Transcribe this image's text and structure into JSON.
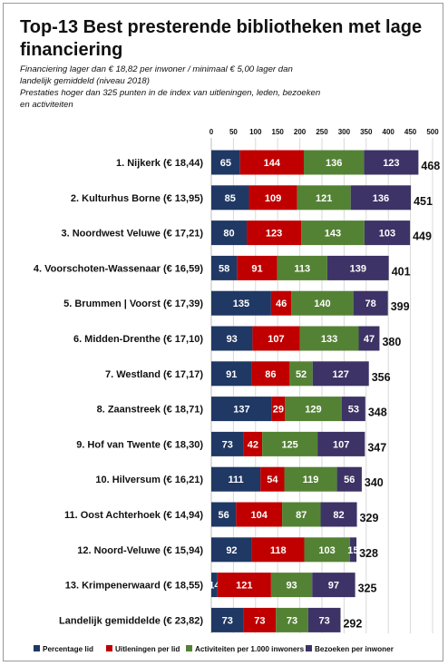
{
  "chart_data": {
    "type": "bar",
    "orientation": "horizontal",
    "stacked": true,
    "title": "Top-13 Best presterende bibliotheken met lage financiering",
    "subtitle_lines": [
      "Financiering lager dan € 18,82 per inwoner / minimaal € 5,00 lager dan",
      "landelijk gemiddeld (niveau 2018)",
      "Prestaties hoger dan 325 punten in de index van uitleningen, leden, bezoeken",
      "en activiteiten"
    ],
    "xlim": [
      0,
      500
    ],
    "x_ticks": [
      0,
      50,
      100,
      150,
      200,
      250,
      300,
      350,
      400,
      450,
      500
    ],
    "x_axis_position": "top",
    "grid": true,
    "legend_position": "bottom",
    "categories": [
      "1. Nijkerk (€ 18,44)",
      "2. Kulturhus Borne (€ 13,95)",
      "3. Noordwest Veluwe (€ 17,21)",
      "4. Voorschoten-Wassenaar (€ 16,59)",
      "5. Brummen | Voorst (€ 17,39)",
      "6. Midden-Drenthe (€ 17,10)",
      "7. Westland (€ 17,17)",
      "8. Zaanstreek (€ 18,71)",
      "9. Hof van Twente (€ 18,30)",
      "10. Hilversum (€ 16,21)",
      "11. Oost Achterhoek (€ 14,94)",
      "12. Noord-Veluwe (€ 15,94)",
      "13. Krimpenerwaard (€ 18,55)",
      "Landelijk gemiddelde (€ 23,82)"
    ],
    "series": [
      {
        "name": "Percentage lid",
        "color": "#1f3864",
        "values": [
          65,
          85,
          80,
          58,
          135,
          93,
          91,
          137,
          73,
          111,
          56,
          92,
          14,
          73
        ]
      },
      {
        "name": "Uitleningen per lid",
        "color": "#c00000",
        "values": [
          144,
          109,
          123,
          91,
          46,
          107,
          86,
          29,
          42,
          54,
          104,
          118,
          121,
          73
        ]
      },
      {
        "name": "Activiteiten per 1.000 inwoners",
        "color": "#548235",
        "values": [
          136,
          121,
          143,
          113,
          140,
          133,
          52,
          129,
          125,
          119,
          87,
          103,
          93,
          73
        ]
      },
      {
        "name": "Bezoeken per inwoner",
        "color": "#3d3366",
        "values": [
          123,
          136,
          103,
          139,
          78,
          47,
          127,
          53,
          107,
          56,
          82,
          15,
          97,
          73
        ]
      }
    ],
    "totals": [
      468,
      451,
      449,
      401,
      399,
      380,
      356,
      348,
      347,
      340,
      329,
      328,
      325,
      292
    ]
  }
}
